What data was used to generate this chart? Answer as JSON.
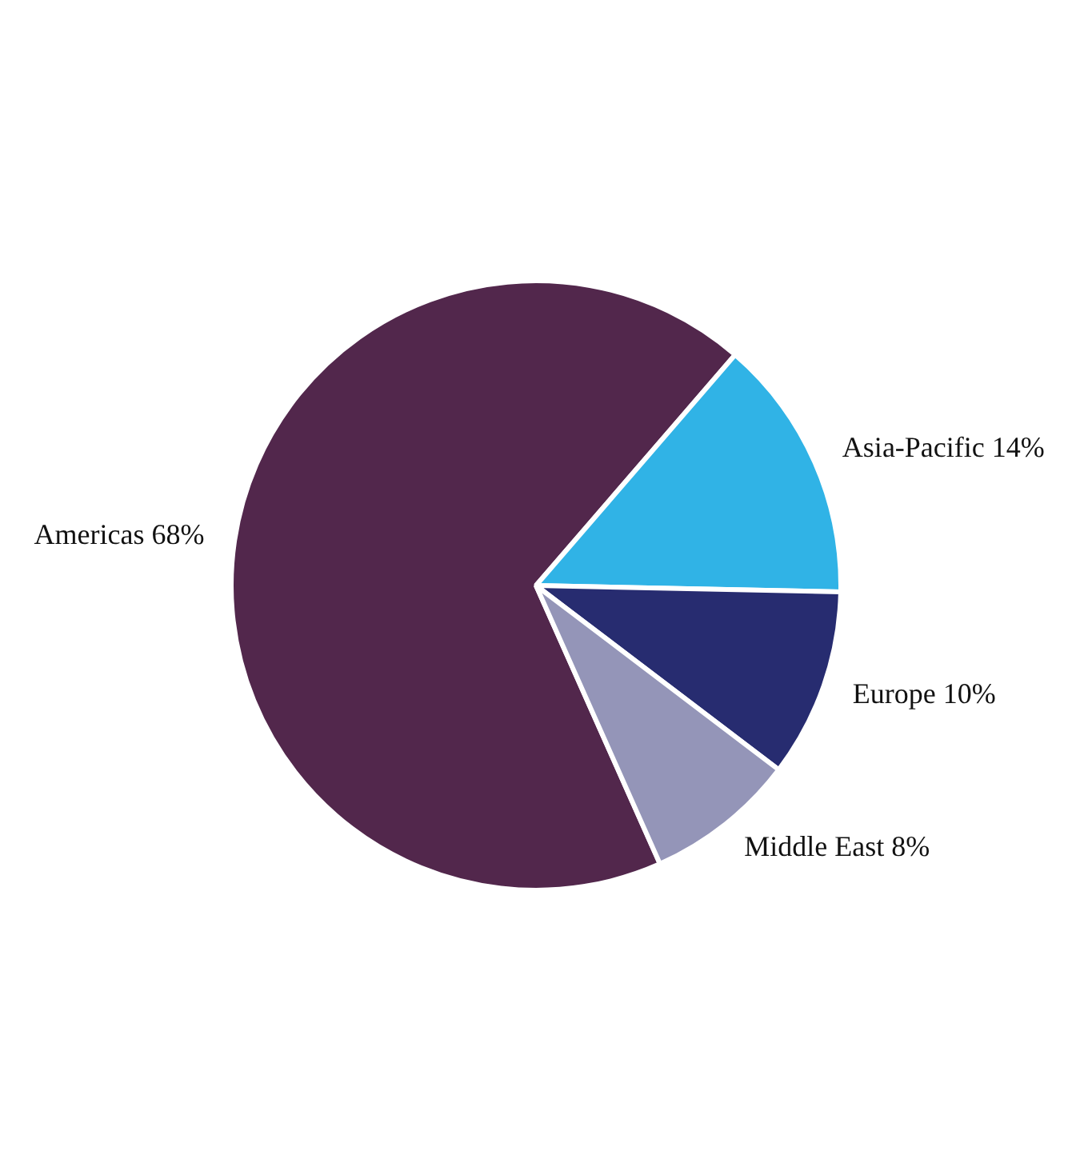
{
  "chart_data": {
    "type": "pie",
    "categories": [
      "Americas",
      "Asia-Pacific",
      "Europe",
      "Middle East"
    ],
    "values": [
      68,
      14,
      10,
      8
    ],
    "colors": [
      "#52274c",
      "#30b3e6",
      "#272c70",
      "#9495b8"
    ],
    "value_labels": [
      "68%",
      "14%",
      "10%",
      "8%"
    ]
  }
}
